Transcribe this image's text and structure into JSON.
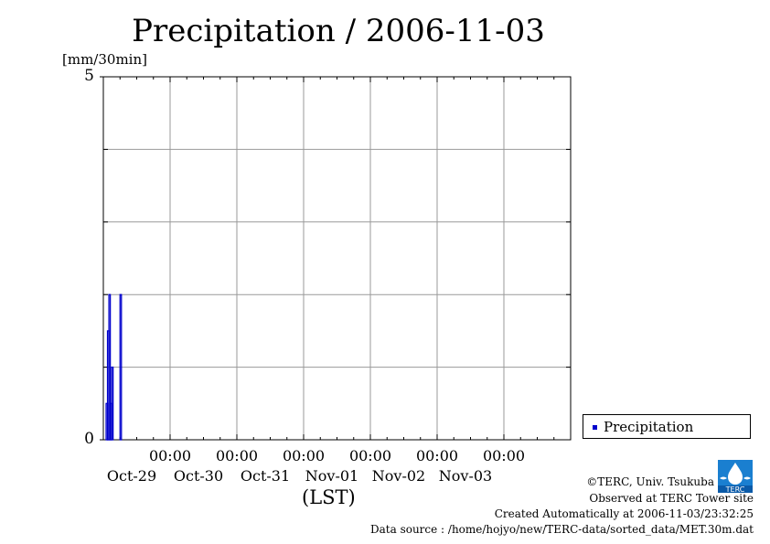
{
  "chart_data": {
    "type": "bar",
    "title": "Precipitation / 2006-11-03",
    "ylabel": "[mm/30min]",
    "xlabel": "(LST)",
    "ylim": [
      0,
      5
    ],
    "yticks": [
      "0",
      "5"
    ],
    "x_start": "2006-10-28T00:00",
    "x_end": "2006-11-04T00:00",
    "grid": true,
    "legend_position": "bottom-right",
    "xticks": [
      {
        "time": "2006-10-29T00:00",
        "label": "00:00",
        "date": "Oct-29"
      },
      {
        "time": "2006-10-30T00:00",
        "label": "00:00",
        "date": "Oct-30"
      },
      {
        "time": "2006-10-31T00:00",
        "label": "00:00",
        "date": "Oct-31"
      },
      {
        "time": "2006-11-01T00:00",
        "label": "00:00",
        "date": "Nov-01"
      },
      {
        "time": "2006-11-02T00:00",
        "label": "00:00",
        "date": "Nov-02"
      },
      {
        "time": "2006-11-03T00:00",
        "label": "00:00",
        "date": "Nov-03"
      }
    ],
    "series": [
      {
        "name": "Precipitation",
        "color": "#0000cc",
        "points": [
          {
            "x": "2006-10-28T01:30",
            "y": 0.5
          },
          {
            "x": "2006-10-28T02:00",
            "y": 1.5
          },
          {
            "x": "2006-10-28T02:30",
            "y": 2.0
          },
          {
            "x": "2006-10-28T03:00",
            "y": 0.5
          },
          {
            "x": "2006-10-28T03:30",
            "y": 1.0
          },
          {
            "x": "2006-10-28T06:30",
            "y": 2.0
          }
        ]
      }
    ]
  },
  "credits": {
    "copyright": "©TERC, Univ. Tsukuba",
    "observed": "Observed at TERC Tower site",
    "created": "Created Automatically at 2006-11-03/23:32:25",
    "source": "Data source : /home/hojyo/new/TERC-data/sorted_data/MET.30m.dat",
    "logo_text": "TERC"
  }
}
